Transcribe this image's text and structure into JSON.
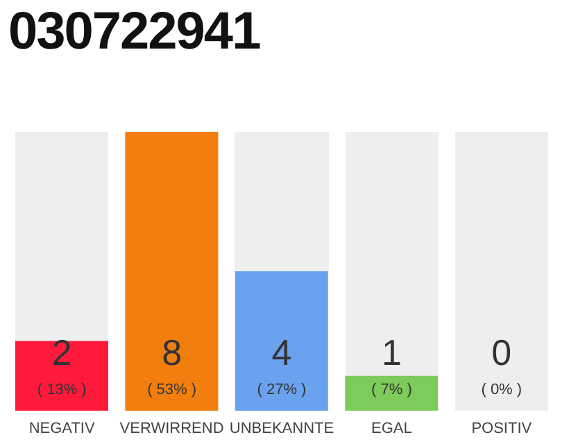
{
  "chart_data": {
    "type": "bar",
    "title": "030722941",
    "categories": [
      "NEGATIV",
      "VERWIRREND",
      "UNBEKANNTE",
      "EGAL",
      "POSITIV"
    ],
    "values": [
      2,
      8,
      4,
      1,
      0
    ],
    "colors": [
      "#ff1a3c",
      "#f27e0e",
      "#6aa2f0",
      "#7dcb5a",
      "#cccccc"
    ],
    "data_labels": true,
    "annotations": [
      "( 13% )",
      "( 53% )",
      "( 27% )",
      "( 7% )",
      "( 0% )"
    ],
    "grid": false,
    "legend": false
  }
}
